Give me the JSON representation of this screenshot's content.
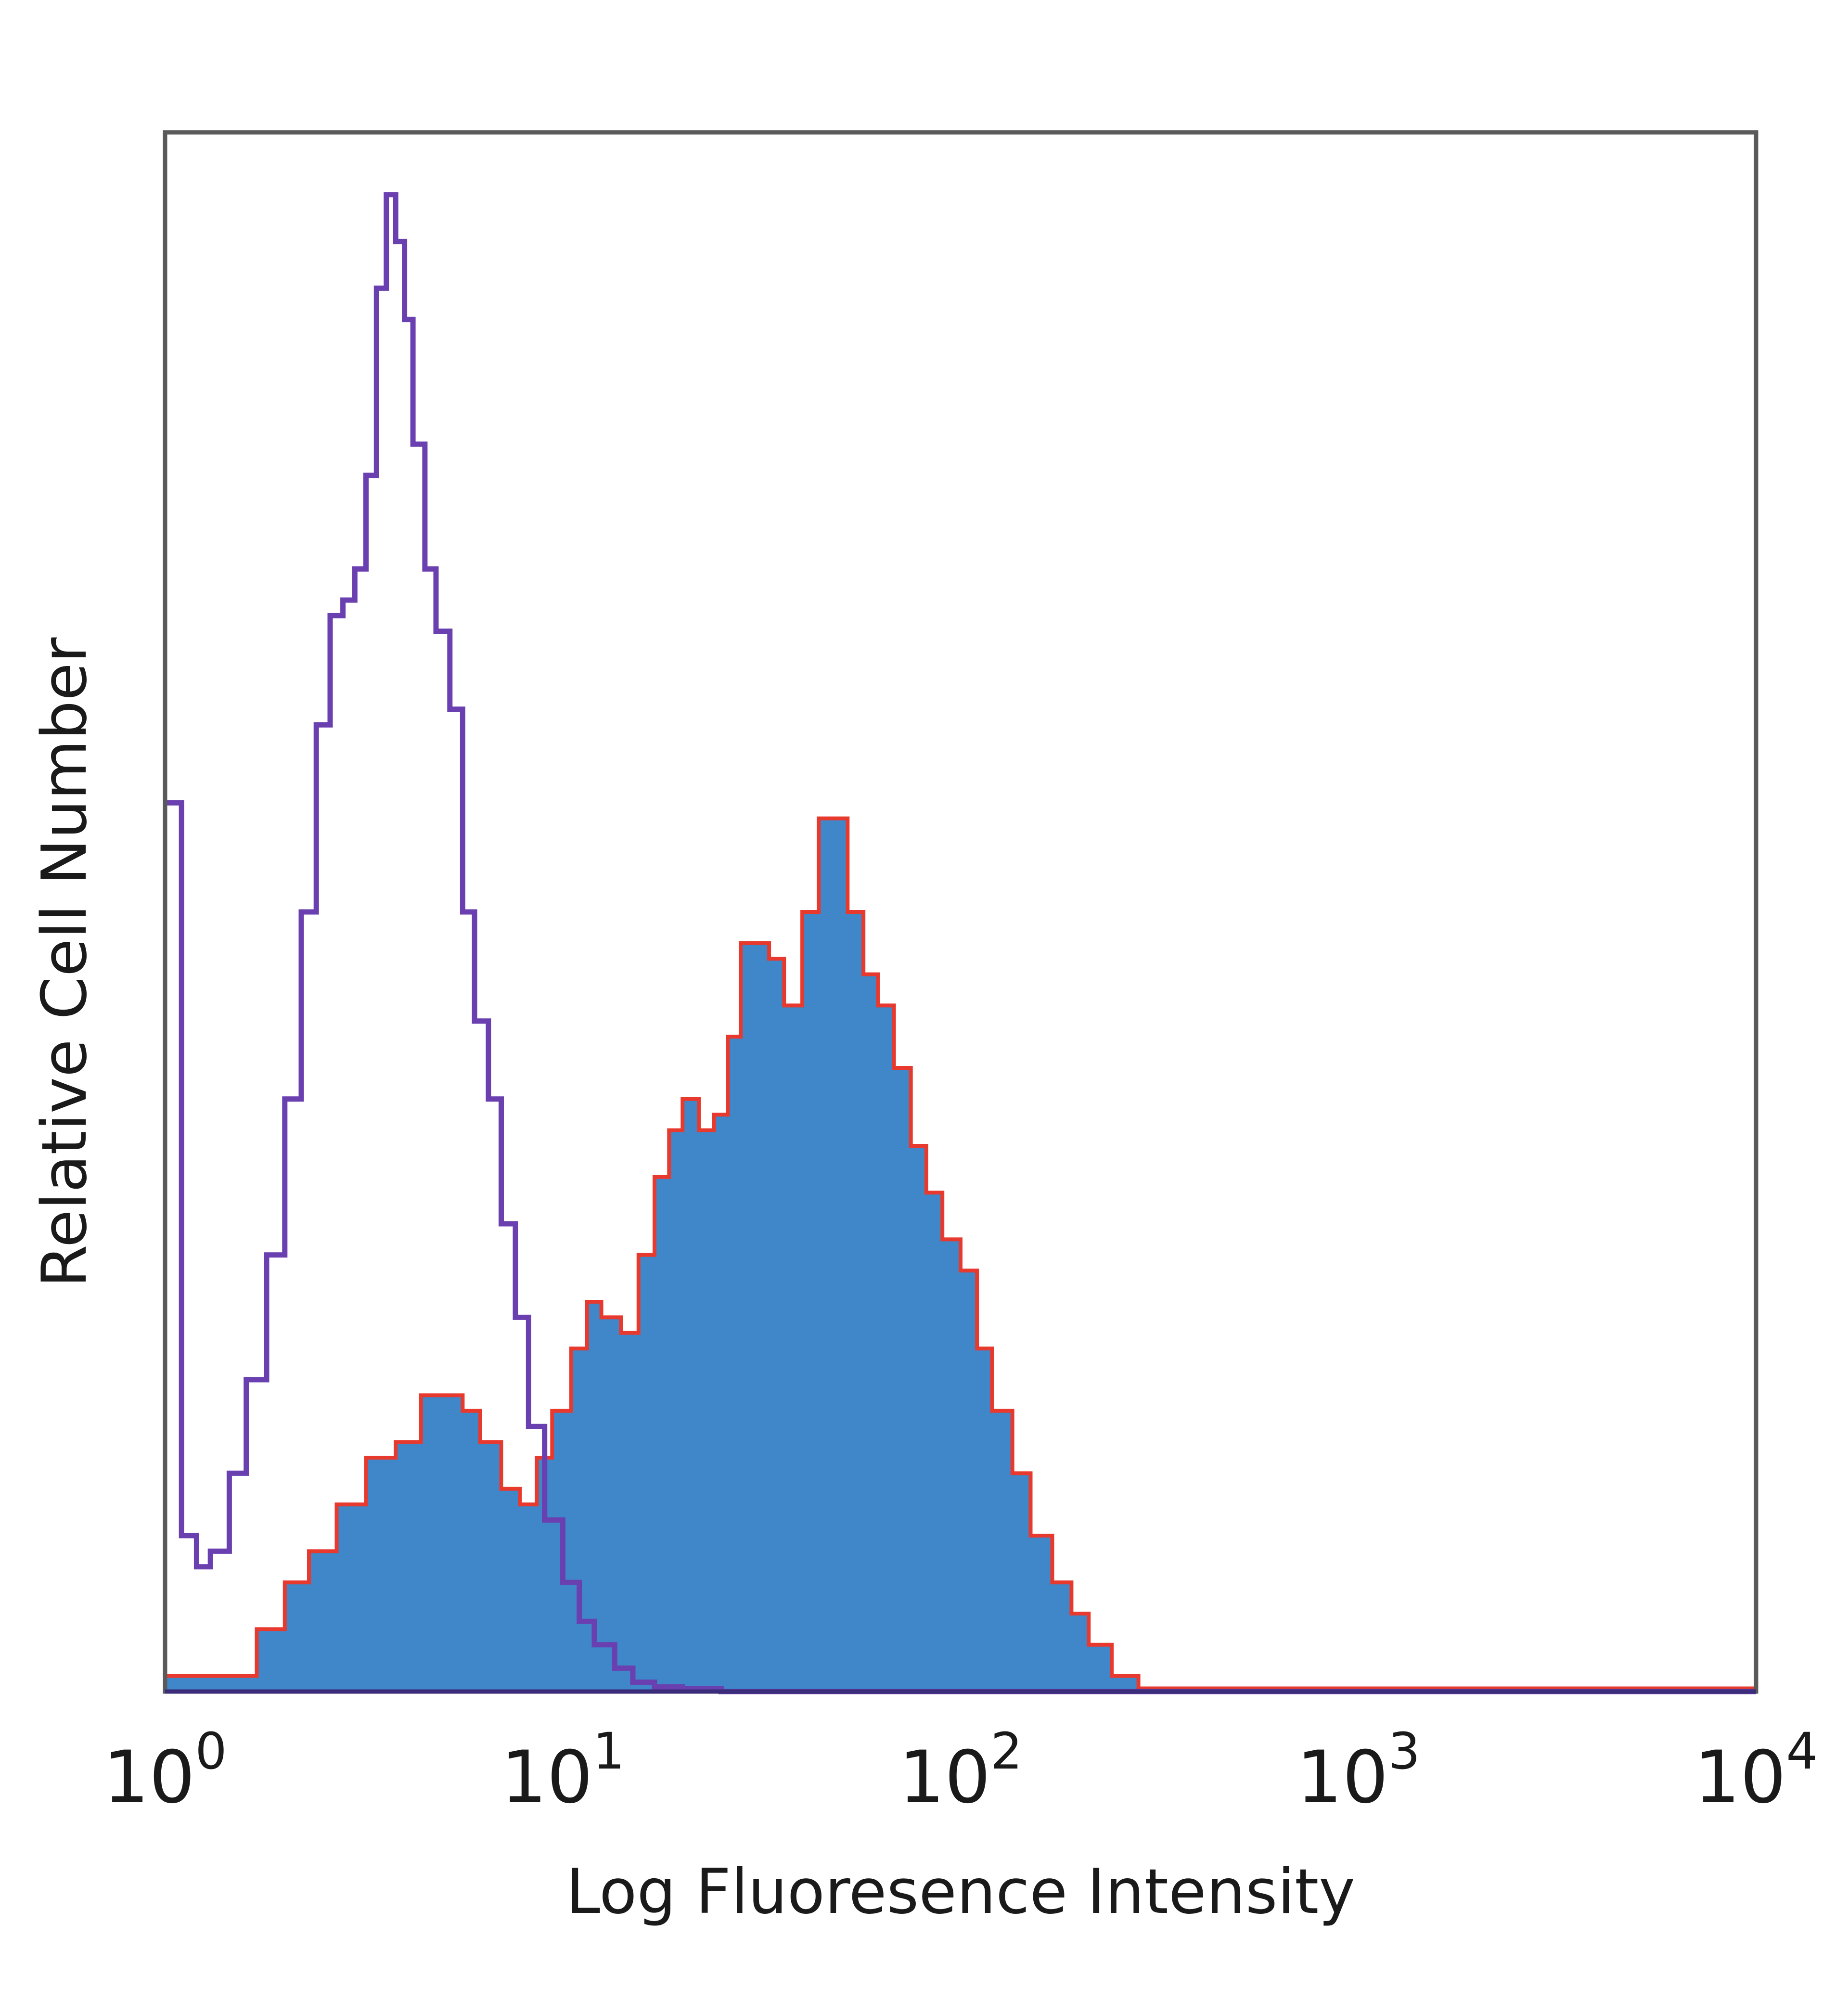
{
  "chart_data": {
    "type": "area",
    "xlabel": "Log Fluoresence Intensity",
    "ylabel": "Relative Cell Number",
    "xscale": "log",
    "xlim": [
      1,
      10000
    ],
    "ylim": [
      0,
      100
    ],
    "grid": false,
    "legend": "none",
    "x_ticks": [
      {
        "value": 1,
        "base": "10",
        "exp": "0"
      },
      {
        "value": 10,
        "base": "10",
        "exp": "1"
      },
      {
        "value": 100,
        "base": "10",
        "exp": "2"
      },
      {
        "value": 1000,
        "base": "10",
        "exp": "3"
      },
      {
        "value": 10000,
        "base": "10",
        "exp": "4"
      }
    ],
    "series": [
      {
        "style": "outline",
        "color": "#6a3fb0",
        "x": [
          1.0,
          1.1,
          1.2,
          1.3,
          1.45,
          1.6,
          1.8,
          2.0,
          2.2,
          2.4,
          2.6,
          2.8,
          3.0,
          3.2,
          3.4,
          3.6,
          3.8,
          4.0,
          4.2,
          4.5,
          4.8,
          5.2,
          5.6,
          6.0,
          6.5,
          7.0,
          7.6,
          8.2,
          9.0,
          10.0,
          11.0,
          12.0,
          13.5,
          15.0,
          17.0,
          20.0,
          25.0,
          100.0,
          10000.0
        ],
        "y": [
          57,
          10,
          8,
          9,
          14,
          20,
          28,
          38,
          50,
          62,
          69,
          70,
          72,
          78,
          90,
          96,
          93,
          88,
          80,
          72,
          68,
          63,
          50,
          43,
          38,
          30,
          24,
          17,
          11,
          7,
          4.5,
          3,
          1.5,
          0.6,
          0.3,
          0.2,
          0,
          0,
          0
        ]
      },
      {
        "style": "filled",
        "color": "#3f87c9",
        "edge_color": "#e8392e",
        "x": [
          1.0,
          1.5,
          1.7,
          2.0,
          2.3,
          2.7,
          3.2,
          3.8,
          4.4,
          5.0,
          5.6,
          6.2,
          7.0,
          7.8,
          8.6,
          9.4,
          10.5,
          11.5,
          12.5,
          14.0,
          15.5,
          17.0,
          18.5,
          20.0,
          22.0,
          24.0,
          26.0,
          28.0,
          30.0,
          33.0,
          36.0,
          40.0,
          44.0,
          48.0,
          52.0,
          57.0,
          62.0,
          68.0,
          75.0,
          82.0,
          90.0,
          100.0,
          110.0,
          120.0,
          135.0,
          150.0,
          170.0,
          190.0,
          210.0,
          240.0,
          280.0,
          10000.0
        ],
        "y": [
          1,
          1,
          4,
          7,
          9,
          12,
          15,
          16,
          19,
          19,
          18,
          16,
          13,
          12,
          15,
          18,
          22,
          25,
          24,
          23,
          28,
          33,
          36,
          38,
          36,
          37,
          42,
          48,
          48,
          47,
          44,
          50,
          56,
          56,
          50,
          46,
          44,
          40,
          35,
          32,
          29,
          27,
          22,
          18,
          14,
          10,
          7,
          5,
          3,
          1,
          0.2,
          0
        ]
      }
    ]
  }
}
